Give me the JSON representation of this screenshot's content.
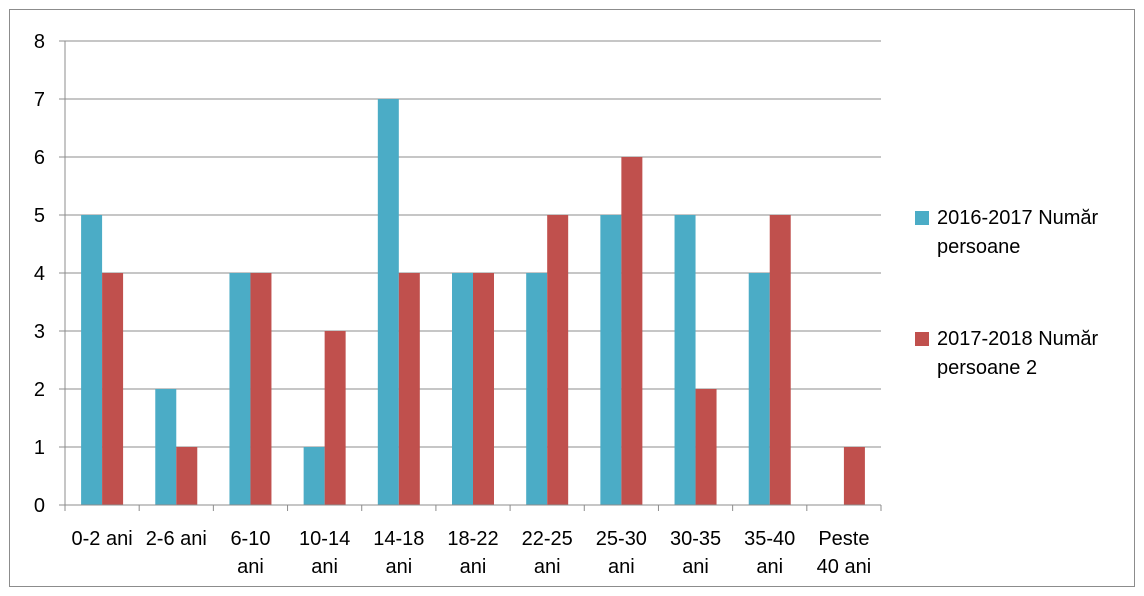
{
  "chart_data": {
    "type": "bar",
    "categories": [
      [
        "0-2 ani"
      ],
      [
        "2-6 ani"
      ],
      [
        "6-10",
        "ani"
      ],
      [
        "10-14",
        "ani"
      ],
      [
        "14-18",
        "ani"
      ],
      [
        "18-22",
        "ani"
      ],
      [
        "22-25",
        "ani"
      ],
      [
        "25-30",
        "ani"
      ],
      [
        "30-35",
        "ani"
      ],
      [
        "35-40",
        "ani"
      ],
      [
        "Peste",
        "40 ani"
      ]
    ],
    "series": [
      {
        "name": "2016-2017 Număr persoane",
        "color": "#4bacc6",
        "values": [
          5,
          2,
          4,
          1,
          7,
          4,
          4,
          5,
          5,
          4,
          0
        ]
      },
      {
        "name": "2017-2018 Număr persoane 2",
        "color": "#c0504d",
        "values": [
          4,
          1,
          4,
          3,
          4,
          4,
          5,
          6,
          2,
          5,
          1
        ]
      }
    ],
    "ylim": [
      0,
      8
    ],
    "yticks": [
      0,
      1,
      2,
      3,
      4,
      5,
      6,
      7,
      8
    ],
    "grid": true,
    "legend": "right"
  }
}
